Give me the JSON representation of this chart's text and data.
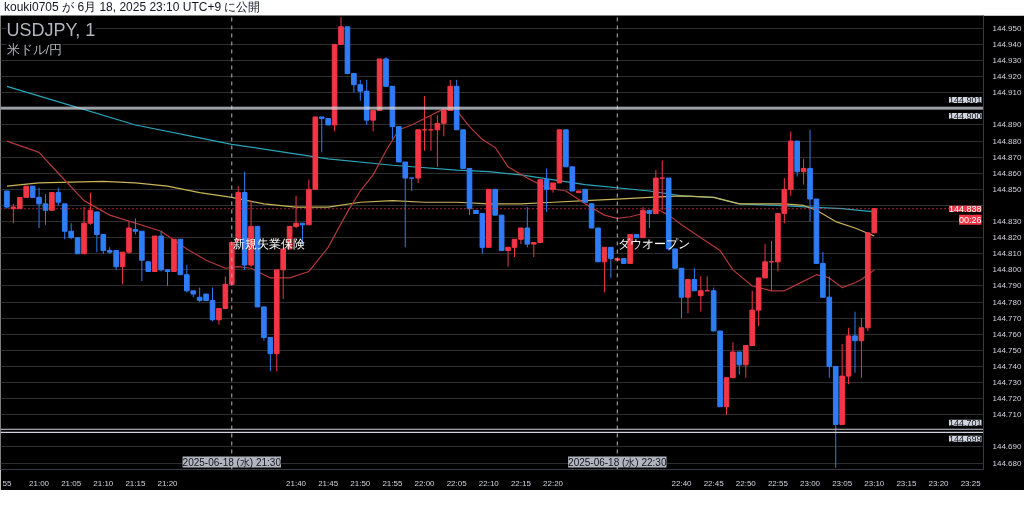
{
  "chart_data": {
    "type": "candlestick",
    "title": "USDJPY, 1",
    "subtitle": "米ドル/円",
    "x": [
      "2025-06-18T20:55",
      "2025-06-18T20:56",
      "2025-06-18T20:57",
      "2025-06-18T20:58",
      "2025-06-18T20:59",
      "2025-06-18T21:00",
      "2025-06-18T21:01",
      "2025-06-18T21:02",
      "2025-06-18T21:03",
      "2025-06-18T21:04",
      "2025-06-18T21:05",
      "2025-06-18T21:06",
      "2025-06-18T21:07",
      "2025-06-18T21:08",
      "2025-06-18T21:09",
      "2025-06-18T21:10",
      "2025-06-18T21:11",
      "2025-06-18T21:12",
      "2025-06-18T21:13",
      "2025-06-18T21:14",
      "2025-06-18T21:15",
      "2025-06-18T21:16",
      "2025-06-18T21:17",
      "2025-06-18T21:18",
      "2025-06-18T21:19",
      "2025-06-18T21:20",
      "2025-06-18T21:21",
      "2025-06-18T21:22",
      "2025-06-18T21:23",
      "2025-06-18T21:24",
      "2025-06-18T21:25",
      "2025-06-18T21:26",
      "2025-06-18T21:27",
      "2025-06-18T21:28",
      "2025-06-18T21:29",
      "2025-06-18T21:30",
      "2025-06-18T21:31",
      "2025-06-18T21:32",
      "2025-06-18T21:33",
      "2025-06-18T21:34",
      "2025-06-18T21:35",
      "2025-06-18T21:36",
      "2025-06-18T21:37",
      "2025-06-18T21:38",
      "2025-06-18T21:39",
      "2025-06-18T21:40",
      "2025-06-18T21:41",
      "2025-06-18T21:42",
      "2025-06-18T21:43",
      "2025-06-18T21:44",
      "2025-06-18T21:45",
      "2025-06-18T21:46",
      "2025-06-18T21:47",
      "2025-06-18T21:48",
      "2025-06-18T21:49",
      "2025-06-18T21:50",
      "2025-06-18T21:51",
      "2025-06-18T21:52",
      "2025-06-18T21:53",
      "2025-06-18T21:54",
      "2025-06-18T21:55",
      "2025-06-18T21:56",
      "2025-06-18T21:57",
      "2025-06-18T21:58",
      "2025-06-18T21:59",
      "2025-06-18T22:00",
      "2025-06-18T22:01",
      "2025-06-18T22:02",
      "2025-06-18T22:03",
      "2025-06-18T22:04",
      "2025-06-18T22:05",
      "2025-06-18T22:06",
      "2025-06-18T22:07",
      "2025-06-18T22:08",
      "2025-06-18T22:09",
      "2025-06-18T22:10",
      "2025-06-18T22:11",
      "2025-06-18T22:12",
      "2025-06-18T22:13",
      "2025-06-18T22:14",
      "2025-06-18T22:15",
      "2025-06-18T22:16",
      "2025-06-18T22:17",
      "2025-06-18T22:18",
      "2025-06-18T22:19",
      "2025-06-18T22:20",
      "2025-06-18T22:21",
      "2025-06-18T22:22",
      "2025-06-18T22:23",
      "2025-06-18T22:24",
      "2025-06-18T22:25",
      "2025-06-18T22:26",
      "2025-06-18T22:27",
      "2025-06-18T22:28",
      "2025-06-18T22:29",
      "2025-06-18T22:30",
      "2025-06-18T22:31",
      "2025-06-18T22:32",
      "2025-06-18T22:33",
      "2025-06-18T22:34",
      "2025-06-18T22:35",
      "2025-06-18T22:36",
      "2025-06-18T22:37",
      "2025-06-18T22:38",
      "2025-06-18T22:39",
      "2025-06-18T22:40",
      "2025-06-18T22:41",
      "2025-06-18T22:42",
      "2025-06-18T22:43",
      "2025-06-18T22:44",
      "2025-06-18T22:45",
      "2025-06-18T22:46",
      "2025-06-18T22:47",
      "2025-06-18T22:48",
      "2025-06-18T22:49",
      "2025-06-18T22:50",
      "2025-06-18T22:51",
      "2025-06-18T22:52",
      "2025-06-18T22:53",
      "2025-06-18T22:54",
      "2025-06-18T22:55",
      "2025-06-18T22:56",
      "2025-06-18T22:57",
      "2025-06-18T22:58",
      "2025-06-18T22:59",
      "2025-06-18T23:00",
      "2025-06-18T23:01",
      "2025-06-18T23:02",
      "2025-06-18T23:03",
      "2025-06-18T23:04",
      "2025-06-18T23:05",
      "2025-06-18T23:06",
      "2025-06-18T23:07",
      "2025-06-18T23:08",
      "2025-06-18T23:09",
      "2025-06-18T23:10"
    ],
    "ohlc": [
      [
        144.849,
        144.849,
        144.838,
        144.839
      ],
      [
        144.838,
        144.841,
        144.829,
        144.839
      ],
      [
        144.838,
        144.845,
        144.838,
        144.845
      ],
      [
        144.845,
        144.852,
        144.845,
        144.852
      ],
      [
        144.852,
        144.852,
        144.845,
        144.845
      ],
      [
        144.845,
        144.851,
        144.826,
        144.841
      ],
      [
        144.841,
        144.847,
        144.828,
        144.837
      ],
      [
        144.837,
        144.848,
        144.837,
        144.848
      ],
      [
        144.848,
        144.851,
        144.84,
        144.842
      ],
      [
        144.841,
        144.841,
        144.819,
        144.824
      ],
      [
        144.824,
        144.829,
        144.819,
        144.82
      ],
      [
        144.82,
        144.82,
        144.81,
        144.81
      ],
      [
        144.81,
        144.839,
        144.81,
        144.829
      ],
      [
        144.829,
        144.848,
        144.828,
        144.837
      ],
      [
        144.836,
        144.836,
        144.811,
        144.822
      ],
      [
        144.822,
        144.822,
        144.81,
        144.812
      ],
      [
        144.812,
        144.814,
        144.81,
        144.811
      ],
      [
        144.812,
        144.812,
        144.8,
        144.802
      ],
      [
        144.802,
        144.811,
        144.791,
        144.811
      ],
      [
        144.811,
        144.83,
        144.81,
        144.826
      ],
      [
        144.825,
        144.832,
        144.822,
        144.824
      ],
      [
        144.824,
        144.824,
        144.793,
        144.806
      ],
      [
        144.805,
        144.805,
        144.799,
        144.799
      ],
      [
        144.799,
        144.821,
        144.799,
        144.821
      ],
      [
        144.821,
        144.824,
        144.799,
        144.8
      ],
      [
        144.8,
        144.8,
        144.79,
        144.799
      ],
      [
        144.799,
        144.819,
        144.799,
        144.819
      ],
      [
        144.819,
        144.819,
        144.797,
        144.797
      ],
      [
        144.797,
        144.803,
        144.786,
        144.787
      ],
      [
        144.787,
        144.787,
        144.783,
        144.785
      ],
      [
        144.783,
        144.789,
        144.78,
        144.781
      ],
      [
        144.785,
        144.785,
        144.781,
        144.781
      ],
      [
        144.781,
        144.789,
        144.768,
        144.769
      ],
      [
        144.769,
        144.776,
        144.766,
        144.776
      ],
      [
        144.776,
        144.796,
        144.776,
        144.791
      ],
      [
        144.791,
        144.817,
        144.791,
        144.817
      ],
      [
        144.818,
        144.852,
        144.818,
        144.848
      ],
      [
        144.848,
        144.861,
        144.8,
        144.803
      ],
      [
        144.803,
        144.843,
        144.802,
        144.827
      ],
      [
        144.827,
        144.827,
        144.777,
        144.777
      ],
      [
        144.777,
        144.777,
        144.756,
        144.758
      ],
      [
        144.758,
        144.758,
        144.737,
        144.748
      ],
      [
        144.748,
        144.8,
        144.737,
        144.8
      ],
      [
        144.8,
        144.813,
        144.782,
        144.813
      ],
      [
        144.813,
        144.827,
        144.813,
        144.827
      ],
      [
        144.827,
        144.846,
        144.826,
        144.829
      ],
      [
        144.829,
        144.829,
        144.816,
        144.828
      ],
      [
        144.828,
        144.856,
        144.828,
        144.85
      ],
      [
        144.85,
        144.895,
        144.85,
        144.895
      ],
      [
        144.895,
        144.895,
        144.873,
        144.894
      ],
      [
        144.894,
        144.894,
        144.89,
        144.89
      ],
      [
        144.89,
        144.94,
        144.886,
        144.94
      ],
      [
        144.94,
        144.957,
        144.94,
        144.951
      ],
      [
        144.951,
        144.951,
        144.922,
        144.922
      ],
      [
        144.922,
        144.922,
        144.91,
        144.915
      ],
      [
        144.915,
        144.918,
        144.905,
        144.911
      ],
      [
        144.911,
        144.918,
        144.89,
        144.893
      ],
      [
        144.893,
        144.899,
        144.886,
        144.899
      ],
      [
        144.899,
        144.931,
        144.899,
        144.931
      ],
      [
        144.931,
        144.932,
        144.914,
        144.914
      ],
      [
        144.914,
        144.914,
        144.881,
        144.889
      ],
      [
        144.889,
        144.889,
        144.867,
        144.867
      ],
      [
        144.867,
        144.867,
        144.814,
        144.857
      ],
      [
        144.857,
        144.857,
        144.849,
        144.857
      ],
      [
        144.857,
        144.887,
        144.854,
        144.887
      ],
      [
        144.887,
        144.908,
        144.874,
        144.887
      ],
      [
        144.887,
        144.896,
        144.874,
        144.887
      ],
      [
        144.887,
        144.896,
        144.864,
        144.891
      ],
      [
        144.891,
        144.899,
        144.883,
        144.899
      ],
      [
        144.899,
        144.918,
        144.899,
        144.914
      ],
      [
        144.914,
        144.918,
        144.887,
        144.887
      ],
      [
        144.887,
        144.887,
        144.863,
        144.863
      ],
      [
        144.863,
        144.863,
        144.834,
        144.838
      ],
      [
        144.837,
        144.837,
        144.835,
        144.835
      ],
      [
        144.835,
        144.835,
        144.81,
        144.814
      ],
      [
        144.814,
        144.85,
        144.814,
        144.85
      ],
      [
        144.85,
        144.85,
        144.834,
        144.834
      ],
      [
        144.834,
        144.834,
        144.812,
        144.812
      ],
      [
        144.812,
        144.814,
        144.802,
        144.814
      ],
      [
        144.814,
        144.819,
        144.808,
        144.819
      ],
      [
        144.819,
        144.826,
        144.816,
        144.826
      ],
      [
        144.826,
        144.839,
        144.814,
        144.816
      ],
      [
        144.816,
        144.817,
        144.808,
        144.817
      ],
      [
        144.817,
        144.856,
        144.817,
        144.856
      ],
      [
        144.856,
        144.863,
        144.836,
        144.85
      ],
      [
        144.85,
        144.854,
        144.848,
        144.854
      ],
      [
        144.854,
        144.887,
        144.854,
        144.887
      ],
      [
        144.887,
        144.887,
        144.864,
        144.864
      ],
      [
        144.864,
        144.864,
        144.849,
        144.849
      ],
      [
        144.848,
        144.849,
        144.848,
        144.849
      ],
      [
        144.85,
        144.85,
        144.842,
        144.842
      ],
      [
        144.841,
        144.841,
        144.826,
        144.826
      ],
      [
        144.826,
        144.826,
        144.805,
        144.805
      ],
      [
        144.805,
        144.814,
        144.786,
        144.814
      ],
      [
        144.814,
        144.814,
        144.795,
        144.807
      ],
      [
        144.806,
        144.807,
        144.806,
        144.807
      ],
      [
        144.807,
        144.807,
        144.804,
        144.804
      ],
      [
        144.804,
        144.822,
        144.804,
        144.822
      ],
      [
        144.822,
        144.822,
        144.82,
        144.82
      ],
      [
        144.82,
        144.839,
        144.82,
        144.837
      ],
      [
        144.837,
        144.837,
        144.826,
        144.835
      ],
      [
        144.835,
        144.862,
        144.835,
        144.857
      ],
      [
        144.857,
        144.868,
        144.837,
        144.857
      ],
      [
        144.857,
        144.857,
        144.812,
        144.813
      ],
      [
        144.813,
        144.813,
        144.801,
        144.801
      ],
      [
        144.801,
        144.801,
        144.77,
        144.783
      ],
      [
        144.783,
        144.794,
        144.773,
        144.794
      ],
      [
        144.794,
        144.801,
        144.787,
        144.787
      ],
      [
        144.784,
        144.796,
        144.774,
        144.787
      ],
      [
        144.787,
        144.796,
        144.787,
        144.787
      ],
      [
        144.787,
        144.789,
        144.762,
        144.762
      ],
      [
        144.762,
        144.762,
        144.715,
        144.715
      ],
      [
        144.715,
        144.733,
        144.71,
        144.733
      ],
      [
        144.733,
        144.755,
        144.733,
        144.749
      ],
      [
        144.749,
        144.749,
        144.735,
        144.741
      ],
      [
        144.741,
        144.753,
        144.733,
        144.753
      ],
      [
        144.753,
        144.787,
        144.753,
        144.775
      ],
      [
        144.775,
        144.795,
        144.765,
        144.795
      ],
      [
        144.795,
        144.816,
        144.795,
        144.805
      ],
      [
        144.805,
        144.818,
        144.787,
        144.805
      ],
      [
        144.805,
        144.835,
        144.799,
        144.835
      ],
      [
        144.835,
        144.857,
        144.829,
        144.85
      ],
      [
        144.85,
        144.886,
        144.846,
        144.88
      ],
      [
        144.88,
        144.88,
        144.858,
        144.861
      ],
      [
        144.861,
        144.869,
        144.853,
        144.863
      ],
      [
        144.863,
        144.887,
        144.83,
        144.844
      ],
      [
        144.844,
        144.844,
        144.804,
        144.804
      ],
      [
        144.804,
        144.811,
        144.783,
        144.783
      ],
      [
        144.783,
        144.796,
        144.733,
        144.74
      ],
      [
        144.74,
        144.74,
        144.677,
        144.704
      ],
      [
        144.704,
        144.754,
        144.704,
        144.734
      ],
      [
        144.734,
        144.764,
        144.729,
        144.759
      ],
      [
        144.759,
        144.774,
        144.736,
        144.756
      ],
      [
        144.756,
        144.77,
        144.733,
        144.764
      ],
      [
        144.764,
        144.823,
        144.762,
        144.823
      ],
      [
        144.823,
        144.838,
        144.823,
        144.838
      ]
    ],
    "colors": [
      "#2f7df6",
      "#f23645",
      "#f23645",
      "#f23645",
      "#2f7df6",
      "#2f7df6",
      "#2f7df6",
      "#f23645",
      "#2f7df6",
      "#2f7df6",
      "#2f7df6",
      "#2f7df6",
      "#f23645",
      "#f23645",
      "#2f7df6",
      "#2f7df6",
      "#2f7df6",
      "#2f7df6",
      "#f23645",
      "#f23645",
      "#2f7df6",
      "#2f7df6",
      "#2f7df6",
      "#f23645",
      "#2f7df6",
      "#2f7df6",
      "#f23645",
      "#2f7df6",
      "#2f7df6",
      "#2f7df6",
      "#2f7df6",
      "#2f7df6",
      "#2f7df6",
      "#f23645",
      "#f23645",
      "#f23645",
      "#f23645",
      "#2f7df6",
      "#f23645",
      "#2f7df6",
      "#2f7df6",
      "#2f7df6",
      "#f23645",
      "#f23645",
      "#f23645",
      "#f23645",
      "#2f7df6",
      "#f23645",
      "#f23645",
      "#2f7df6",
      "#2f7df6",
      "#f23645",
      "#f23645",
      "#2f7df6",
      "#2f7df6",
      "#2f7df6",
      "#2f7df6",
      "#f23645",
      "#f23645",
      "#2f7df6",
      "#2f7df6",
      "#2f7df6",
      "#2f7df6",
      "#2f7df6",
      "#f23645",
      "#f23645",
      "#f23645",
      "#f23645",
      "#f23645",
      "#f23645",
      "#2f7df6",
      "#2f7df6",
      "#2f7df6",
      "#2f7df6",
      "#2f7df6",
      "#f23645",
      "#2f7df6",
      "#2f7df6",
      "#f23645",
      "#f23645",
      "#f23645",
      "#2f7df6",
      "#f23645",
      "#f23645",
      "#2f7df6",
      "#f23645",
      "#f23645",
      "#2f7df6",
      "#2f7df6",
      "#f23645",
      "#2f7df6",
      "#2f7df6",
      "#2f7df6",
      "#f23645",
      "#2f7df6",
      "#f23645",
      "#2f7df6",
      "#f23645",
      "#2f7df6",
      "#f23645",
      "#2f7df6",
      "#f23645",
      "#f23645",
      "#2f7df6",
      "#2f7df6",
      "#2f7df6",
      "#f23645",
      "#2f7df6",
      "#f23645",
      "#f23645",
      "#2f7df6",
      "#2f7df6",
      "#f23645",
      "#f23645",
      "#2f7df6",
      "#f23645",
      "#f23645",
      "#f23645",
      "#f23645",
      "#f23645",
      "#f23645",
      "#f23645",
      "#f23645",
      "#2f7df6",
      "#f23645",
      "#2f7df6",
      "#2f7df6",
      "#2f7df6",
      "#2f7df6",
      "#2f7df6",
      "#f23645",
      "#f23645",
      "#2f7df6",
      "#f23645",
      "#f23645",
      "#f23645"
    ],
    "series": [
      {
        "type": "line",
        "color": "#2ba3b8",
        "x": [
          "2025-06-18T20:55",
          "2025-06-18T21:05",
          "2025-06-18T21:15",
          "2025-06-18T21:25",
          "2025-06-18T21:30",
          "2025-06-18T21:35",
          "2025-06-18T21:45",
          "2025-06-18T21:55",
          "2025-06-18T22:05",
          "2025-06-18T22:10",
          "2025-06-18T22:15",
          "2025-06-18T22:25",
          "2025-06-18T22:35",
          "2025-06-18T22:40",
          "2025-06-18T22:45",
          "2025-06-18T22:49",
          "2025-06-18T22:55",
          "2025-06-18T23:00",
          "2025-06-18T23:05",
          "2025-06-18T23:10"
        ],
        "values": [
          144.914,
          144.902,
          144.89,
          144.882,
          144.878,
          144.875,
          144.869,
          144.865,
          144.862,
          144.861,
          144.859,
          144.853,
          144.849,
          144.846,
          144.845,
          144.841,
          144.84,
          144.839,
          144.838,
          144.836
        ]
      },
      {
        "type": "line",
        "color": "#c9b458",
        "x": [
          "2025-06-18T20:55",
          "2025-06-18T21:00",
          "2025-06-18T21:10",
          "2025-06-18T21:15",
          "2025-06-18T21:20",
          "2025-06-18T21:25",
          "2025-06-18T21:30",
          "2025-06-18T21:35",
          "2025-06-18T21:40",
          "2025-06-18T21:45",
          "2025-06-18T21:50",
          "2025-06-18T21:55",
          "2025-06-18T22:00",
          "2025-06-18T22:05",
          "2025-06-18T22:10",
          "2025-06-18T22:15",
          "2025-06-18T22:20",
          "2025-06-18T22:25",
          "2025-06-18T22:30",
          "2025-06-18T22:35",
          "2025-06-18T22:40",
          "2025-06-18T22:45",
          "2025-06-18T22:49",
          "2025-06-18T22:52",
          "2025-06-18T22:56",
          "2025-06-18T22:59",
          "2025-06-18T23:01",
          "2025-06-18T23:04",
          "2025-06-18T23:07",
          "2025-06-18T23:10"
        ],
        "values": [
          144.852,
          144.854,
          144.855,
          144.854,
          144.852,
          144.848,
          144.845,
          144.841,
          144.839,
          144.839,
          144.842,
          144.843,
          144.842,
          144.842,
          144.841,
          144.841,
          144.842,
          144.843,
          144.844,
          144.845,
          144.846,
          144.845,
          144.841,
          144.841,
          144.841,
          144.84,
          144.837,
          144.83,
          144.826,
          144.821
        ]
      },
      {
        "type": "line",
        "color": "#b2383a",
        "x": [
          "2025-06-18T20:55",
          "2025-06-18T21:00",
          "2025-06-18T21:03",
          "2025-06-18T21:07",
          "2025-06-18T21:11",
          "2025-06-18T21:15",
          "2025-06-18T21:19",
          "2025-06-18T21:23",
          "2025-06-18T21:26",
          "2025-06-18T21:29",
          "2025-06-18T21:31",
          "2025-06-18T21:33",
          "2025-06-18T21:36",
          "2025-06-18T21:39",
          "2025-06-18T21:42",
          "2025-06-18T21:45",
          "2025-06-18T21:48",
          "2025-06-18T21:50",
          "2025-06-18T21:52",
          "2025-06-18T21:54",
          "2025-06-18T21:56",
          "2025-06-18T21:58",
          "2025-06-18T22:01",
          "2025-06-18T22:03",
          "2025-06-18T22:05",
          "2025-06-18T22:07",
          "2025-06-18T22:09",
          "2025-06-18T22:11",
          "2025-06-18T22:13",
          "2025-06-18T22:16",
          "2025-06-18T22:19",
          "2025-06-18T22:22",
          "2025-06-18T22:25",
          "2025-06-18T22:28",
          "2025-06-18T22:30",
          "2025-06-18T22:32",
          "2025-06-18T22:34",
          "2025-06-18T22:36",
          "2025-06-18T22:38",
          "2025-06-18T22:40",
          "2025-06-18T22:43",
          "2025-06-18T22:46",
          "2025-06-18T22:48",
          "2025-06-18T22:51",
          "2025-06-18T22:54",
          "2025-06-18T22:56",
          "2025-06-18T22:58",
          "2025-06-18T23:01",
          "2025-06-18T23:03",
          "2025-06-18T23:05",
          "2025-06-18T23:07",
          "2025-06-18T23:08",
          "2025-06-18T23:10"
        ],
        "values": [
          144.88,
          144.873,
          144.86,
          144.843,
          144.834,
          144.829,
          144.824,
          144.813,
          144.806,
          144.801,
          144.802,
          144.801,
          144.795,
          144.795,
          144.799,
          144.814,
          144.836,
          144.849,
          144.859,
          144.874,
          144.887,
          144.89,
          144.896,
          144.9,
          144.899,
          144.889,
          144.881,
          144.876,
          144.864,
          144.857,
          144.851,
          144.849,
          144.841,
          144.834,
          144.832,
          144.833,
          144.835,
          144.838,
          144.834,
          144.828,
          144.82,
          144.812,
          144.8,
          144.79,
          144.787,
          144.787,
          144.791,
          144.797,
          144.795,
          144.789,
          144.792,
          144.794,
          144.8
        ]
      }
    ],
    "xlim": [
      "2025-06-18T20:54",
      "2025-06-18T23:27"
    ],
    "ylim": [
      144.676,
      144.958
    ],
    "xticks": [
      {
        "value": "2025-06-18T20:55",
        "label": "55"
      },
      {
        "value": "2025-06-18T21:00",
        "label": "21:00"
      },
      {
        "value": "2025-06-18T21:05",
        "label": "21:05"
      },
      {
        "value": "2025-06-18T21:10",
        "label": "21:10"
      },
      {
        "value": "2025-06-18T21:15",
        "label": "21:15"
      },
      {
        "value": "2025-06-18T21:20",
        "label": "21:20"
      },
      {
        "value": "2025-06-18T21:40",
        "label": "21:40"
      },
      {
        "value": "2025-06-18T21:45",
        "label": "21:45"
      },
      {
        "value": "2025-06-18T21:50",
        "label": "21:50"
      },
      {
        "value": "2025-06-18T21:55",
        "label": "21:55"
      },
      {
        "value": "2025-06-18T22:00",
        "label": "22:00"
      },
      {
        "value": "2025-06-18T22:05",
        "label": "22:05"
      },
      {
        "value": "2025-06-18T22:10",
        "label": "22:10"
      },
      {
        "value": "2025-06-18T22:15",
        "label": "22:15"
      },
      {
        "value": "2025-06-18T22:20",
        "label": "22:20"
      },
      {
        "value": "2025-06-18T22:40",
        "label": "22:40"
      },
      {
        "value": "2025-06-18T22:45",
        "label": "22:45"
      },
      {
        "value": "2025-06-18T22:50",
        "label": "22:50"
      },
      {
        "value": "2025-06-18T22:55",
        "label": "22:55"
      },
      {
        "value": "2025-06-18T23:00",
        "label": "23:00"
      },
      {
        "value": "2025-06-18T23:05",
        "label": "23:05"
      },
      {
        "value": "2025-06-18T23:10",
        "label": "23:10"
      },
      {
        "value": "2025-06-18T23:15",
        "label": "23:15"
      },
      {
        "value": "2025-06-18T23:20",
        "label": "23:20"
      },
      {
        "value": "2025-06-18T23:25",
        "label": "23:25"
      }
    ],
    "yticks": [
      {
        "value": 144.68,
        "label": "144.680"
      },
      {
        "value": 144.69,
        "label": "144.690"
      },
      {
        "value": 144.71,
        "label": "144.710"
      },
      {
        "value": 144.72,
        "label": "144.720"
      },
      {
        "value": 144.73,
        "label": "144.730"
      },
      {
        "value": 144.74,
        "label": "144.740"
      },
      {
        "value": 144.75,
        "label": "144.750"
      },
      {
        "value": 144.76,
        "label": "144.760"
      },
      {
        "value": 144.77,
        "label": "144.770"
      },
      {
        "value": 144.78,
        "label": "144.780"
      },
      {
        "value": 144.79,
        "label": "144.790"
      },
      {
        "value": 144.8,
        "label": "144.800"
      },
      {
        "value": 144.81,
        "label": "144.810"
      },
      {
        "value": 144.82,
        "label": "144.820"
      },
      {
        "value": 144.83,
        "label": "144.830"
      },
      {
        "value": 144.84,
        "label": null
      },
      {
        "value": 144.85,
        "label": "144.850"
      },
      {
        "value": 144.86,
        "label": "144.860"
      },
      {
        "value": 144.87,
        "label": "144.870"
      },
      {
        "value": 144.88,
        "label": "144.880"
      },
      {
        "value": 144.89,
        "label": "144.890"
      },
      {
        "value": 144.91,
        "label": "144.910"
      },
      {
        "value": 144.92,
        "label": "144.920"
      },
      {
        "value": 144.93,
        "label": "144.930"
      },
      {
        "value": 144.94,
        "label": "144.940"
      },
      {
        "value": 144.95,
        "label": "144.950"
      }
    ],
    "grid": "y",
    "ref_lines": [
      {
        "axis": "x",
        "value": "2025-06-18T21:30",
        "label": "2025-06-18 (水) 21:30",
        "color": "#b2b5be",
        "line_style": "dashed"
      },
      {
        "axis": "x",
        "value": "2025-06-18T22:30",
        "label": "2025-06-18 (水) 22:30",
        "color": "#b2b5be",
        "line_style": "dashed"
      },
      {
        "axis": "y",
        "value": 144.901,
        "label": "144.901",
        "color": "#d1d4dc"
      },
      {
        "axis": "y",
        "value": 144.9,
        "label": "144.900",
        "color": "#d1d4dc"
      },
      {
        "axis": "y",
        "value": 144.701,
        "label": "144.701",
        "color": "#d1d4dc"
      },
      {
        "axis": "y",
        "value": 144.699,
        "label": "144.699",
        "color": "#d1d4dc"
      },
      {
        "axis": "y",
        "value": 144.838,
        "label": "144.838",
        "color": "#f23645",
        "line_style": "dotted"
      }
    ],
    "annotations": [
      "kouki0705 が 6月 18, 2025 23:10 UTC+9 に公開",
      "00:26",
      "新規失業保険",
      "ダウオープン"
    ]
  }
}
